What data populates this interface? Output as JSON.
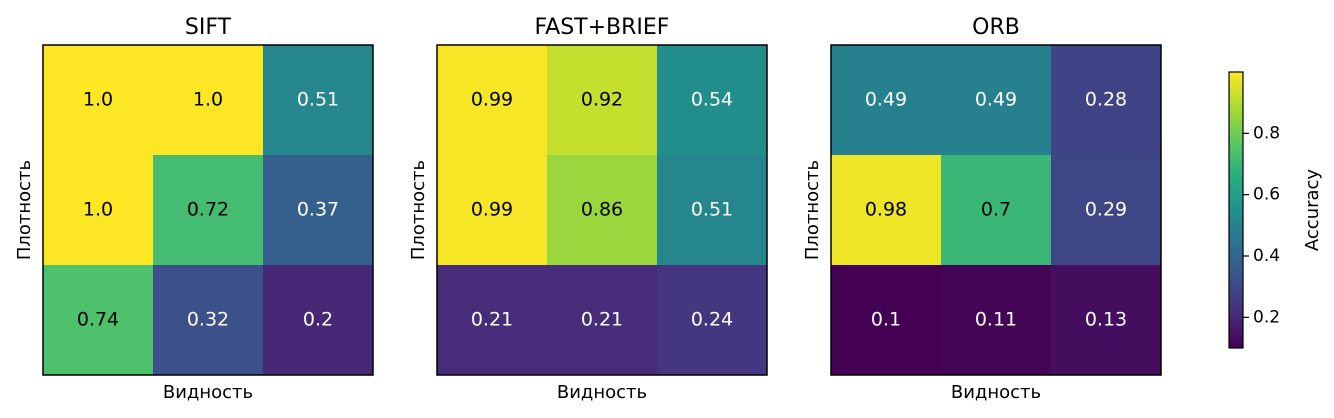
{
  "chart_data": {
    "type": "heatmap",
    "panels": [
      {
        "title": "SIFT",
        "xlabel": "Видность",
        "ylabel": "Плотность",
        "rows": [
          {
            "values": [
              1.0,
              1.0,
              0.51
            ],
            "labels": [
              "1.0",
              "1.0",
              "0.51"
            ]
          },
          {
            "values": [
              1.0,
              0.72,
              0.37
            ],
            "labels": [
              "1.0",
              "0.72",
              "0.37"
            ]
          },
          {
            "values": [
              0.74,
              0.32,
              0.2
            ],
            "labels": [
              "0.74",
              "0.32",
              "0.2"
            ]
          }
        ]
      },
      {
        "title": "FAST+BRIEF",
        "xlabel": "Видность",
        "ylabel": "Плотность",
        "rows": [
          {
            "values": [
              0.99,
              0.92,
              0.54
            ],
            "labels": [
              "0.99",
              "0.92",
              "0.54"
            ]
          },
          {
            "values": [
              0.99,
              0.86,
              0.51
            ],
            "labels": [
              "0.99",
              "0.86",
              "0.51"
            ]
          },
          {
            "values": [
              0.21,
              0.21,
              0.24
            ],
            "labels": [
              "0.21",
              "0.21",
              "0.24"
            ]
          }
        ]
      },
      {
        "title": "ORB",
        "xlabel": "Видность",
        "ylabel": "Плотность",
        "rows": [
          {
            "values": [
              0.49,
              0.49,
              0.28
            ],
            "labels": [
              "0.49",
              "0.49",
              "0.28"
            ]
          },
          {
            "values": [
              0.98,
              0.7,
              0.29
            ],
            "labels": [
              "0.98",
              "0.7",
              "0.29"
            ]
          },
          {
            "values": [
              0.1,
              0.11,
              0.13
            ],
            "labels": [
              "0.1",
              "0.11",
              "0.13"
            ]
          }
        ]
      }
    ],
    "colorbar": {
      "label": "Accuracy",
      "colormap": "viridis",
      "range": [
        0.1,
        1.0
      ],
      "ticks": [
        0.2,
        0.4,
        0.6,
        0.8
      ],
      "tick_labels": [
        "0.2",
        "0.4",
        "0.6",
        "0.8"
      ]
    },
    "grid": false
  }
}
